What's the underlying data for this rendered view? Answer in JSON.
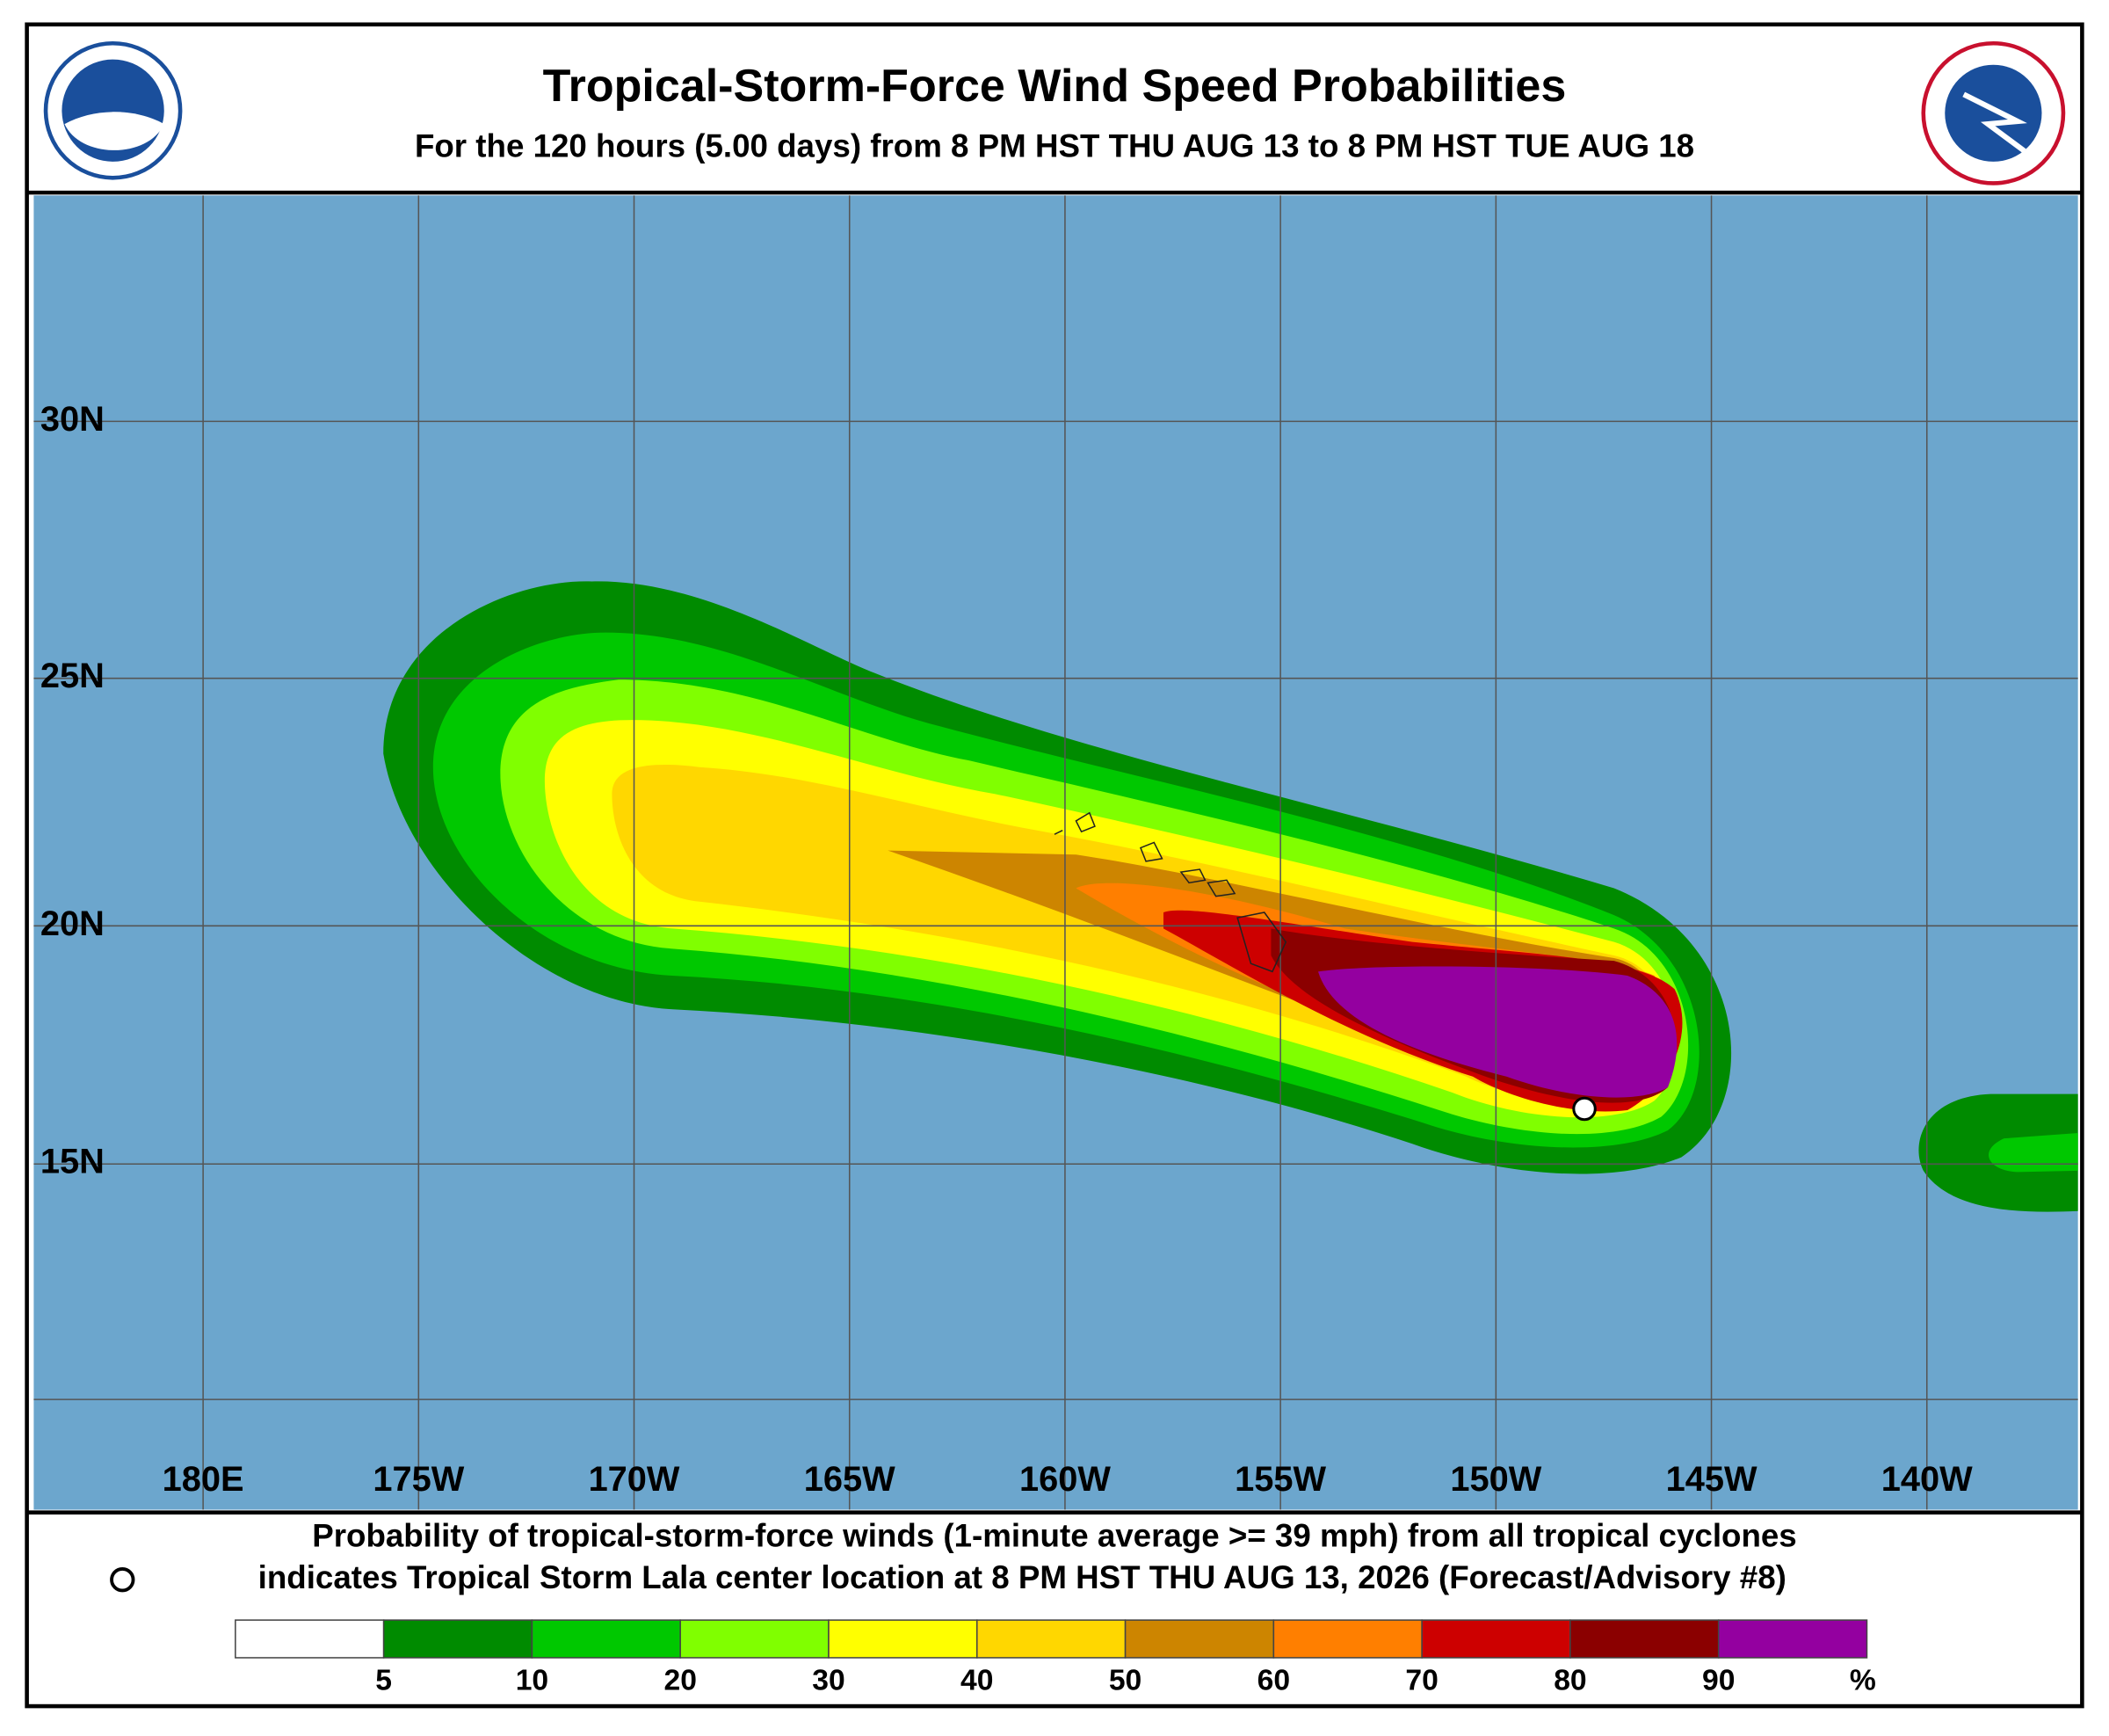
{
  "header": {
    "title": "Tropical-Storm-Force Wind Speed Probabilities",
    "subtitle": "For the 120 hours (5.00 days) from 8 PM HST THU AUG 13 to 8 PM HST TUE AUG 18"
  },
  "map": {
    "longitude_labels": [
      "180E",
      "175W",
      "170W",
      "165W",
      "160W",
      "155W",
      "150W",
      "145W",
      "140W"
    ],
    "latitude_labels": [
      "30N",
      "25N",
      "20N",
      "15N"
    ]
  },
  "footer": {
    "line1": "Probability of tropical-storm-force winds (1-minute average >= 39 mph) from all tropical cyclones",
    "line2": "indicates Tropical Storm Lala center location at 8 PM HST THU AUG 13, 2026 (Forecast/Advisory #8)"
  },
  "colorbar": {
    "ticks": [
      5,
      10,
      20,
      30,
      40,
      50,
      60,
      70,
      80,
      90
    ],
    "unit": "%",
    "colors": [
      "#ffffff",
      "#008b00",
      "#00c800",
      "#80ff00",
      "#ffff00",
      "#ffd700",
      "#cd8500",
      "#ff7f00",
      "#cd0000",
      "#8b0000",
      "#9400a0"
    ]
  }
}
